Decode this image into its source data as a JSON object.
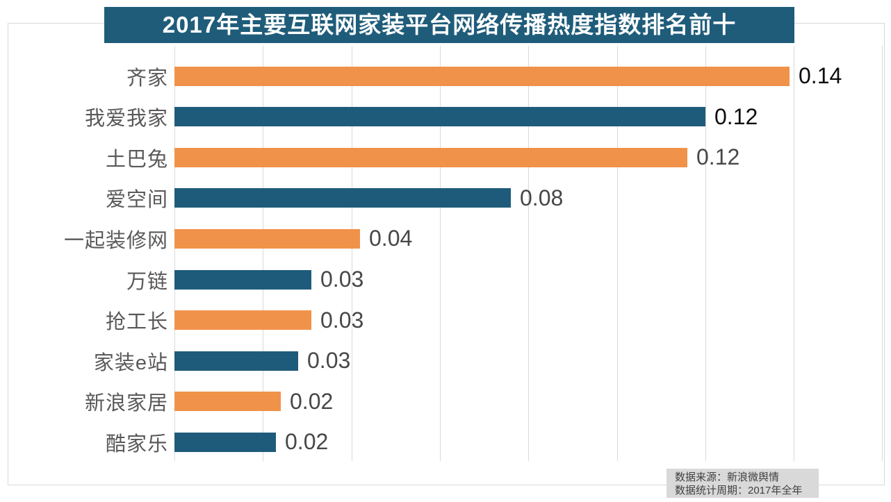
{
  "colors": {
    "orange": "#F0924A",
    "blue": "#1E5B7A",
    "title_bg": "#1F5C7A",
    "title_text": "#FFFFFF",
    "grid": "#D9D9D9",
    "border": "#D9D9D9",
    "category_label": "#595959",
    "value_label_emphasis": "#0D0D0D",
    "value_label_normal": "#474747",
    "source_bg": "#D9D9D9",
    "source_text": "#404040"
  },
  "source": {
    "line1": "数据来源：新浪微舆情",
    "line2": "数据统计周期：2017年全年"
  },
  "chart_data": {
    "type": "bar",
    "orientation": "horizontal",
    "title": "2017年主要互联网家装平台网络传播热度指数排名前十",
    "xlabel": "",
    "ylabel": "",
    "xlim": [
      0,
      0.16
    ],
    "grid_step": 0.02,
    "grid": true,
    "legend": false,
    "items": [
      {
        "category": "齐家",
        "value": 0.139,
        "label": "0.14",
        "color": "#F0924A",
        "label_color": "#0D0D0D"
      },
      {
        "category": "我爱我家",
        "value": 0.12,
        "label": "0.12",
        "color": "#1E5B7A",
        "label_color": "#0D0D0D"
      },
      {
        "category": "土巴兔",
        "value": 0.116,
        "label": "0.12",
        "color": "#F0924A",
        "label_color": "#474747"
      },
      {
        "category": "爱空间",
        "value": 0.076,
        "label": "0.08",
        "color": "#1E5B7A",
        "label_color": "#474747"
      },
      {
        "category": "一起装修网",
        "value": 0.042,
        "label": "0.04",
        "color": "#F0924A",
        "label_color": "#474747"
      },
      {
        "category": "万链",
        "value": 0.031,
        "label": "0.03",
        "color": "#1E5B7A",
        "label_color": "#474747"
      },
      {
        "category": "抢工长",
        "value": 0.031,
        "label": "0.03",
        "color": "#F0924A",
        "label_color": "#474747"
      },
      {
        "category": "家装e站",
        "value": 0.028,
        "label": "0.03",
        "color": "#1E5B7A",
        "label_color": "#474747"
      },
      {
        "category": "新浪家居",
        "value": 0.024,
        "label": "0.02",
        "color": "#F0924A",
        "label_color": "#474747"
      },
      {
        "category": "酷家乐",
        "value": 0.023,
        "label": "0.02",
        "color": "#1E5B7A",
        "label_color": "#474747"
      }
    ]
  }
}
